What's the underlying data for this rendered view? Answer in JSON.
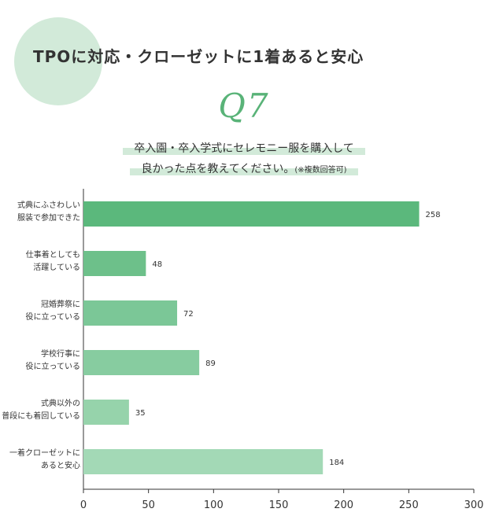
{
  "header": {
    "title": "TPOに対応・クローゼットに1着あると安心",
    "question_number": "Q7",
    "question_line1": "卒入園・卒入学式にセレモニー服を購入して",
    "question_line2": "良かった点を教えてください。",
    "question_note": "(※複数回答可)"
  },
  "chart_data": {
    "type": "bar",
    "orientation": "horizontal",
    "categories": [
      [
        "式典にふさわしい",
        "服装で参加できた"
      ],
      [
        "仕事着としても",
        "活躍している"
      ],
      [
        "冠婚葬祭に",
        "役に立っている"
      ],
      [
        "学校行事に",
        "役に立っている"
      ],
      [
        "式典以外の",
        "普段にも着回している"
      ],
      [
        "一着クローゼットに",
        "あると安心"
      ]
    ],
    "values": [
      258,
      48,
      72,
      89,
      35,
      184
    ],
    "xlim": [
      0,
      300
    ],
    "xticks": [
      0,
      50,
      100,
      150,
      200,
      250,
      300
    ],
    "grid": false,
    "colors": [
      "#5bb87c",
      "#6dc08a",
      "#7bc797",
      "#87cca0",
      "#96d3ab",
      "#a3d9b6"
    ]
  }
}
